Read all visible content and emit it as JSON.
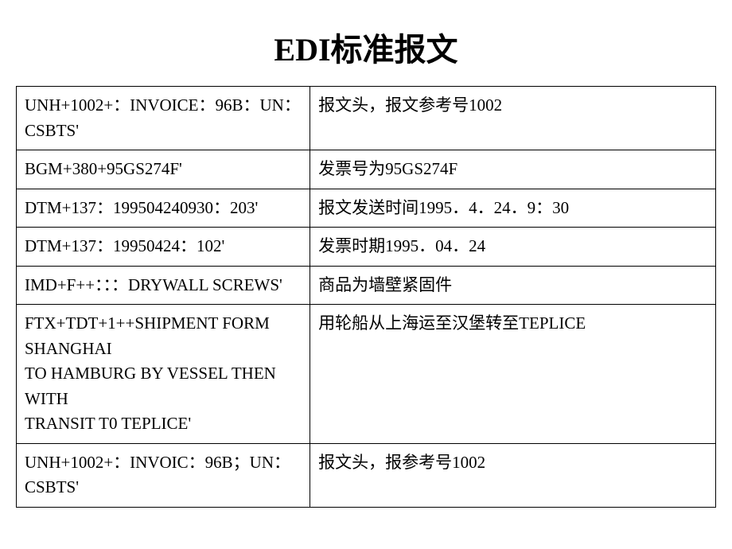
{
  "title": "EDI标准报文",
  "table": {
    "rows": [
      {
        "col1": "UNH+1002+：INVOICE：96B：UN：CSBTS'",
        "col2": "报文头，报文参考号1002"
      },
      {
        "col1": "BGM+380+95GS274F'",
        "col2": "发票号为95GS274F"
      },
      {
        "col1": "DTM+137：199504240930：203'",
        "col2": "报文发送时间1995．4．24．9：30"
      },
      {
        "col1": "DTM+137：19950424：102'",
        "col2": "发票时期1995．04．24"
      },
      {
        "col1": "IMD+F++：：：DRYWALL SCREWS'",
        "col2": "商品为墙壁紧固件"
      },
      {
        "col1": "FTX+TDT+1++SHIPMENT FORM SHANGHAI\nTO  HAMBURG  BY  VESSEL  THEN WITH\nTRANSIT  T0  TEPLICE'",
        "col2": "用轮船从上海运至汉堡转至TEPLICE"
      },
      {
        "col1": "UNH+1002+：INVOIC：96B；UN：CSBTS'",
        "col2": "报文头，报参考号1002"
      }
    ]
  },
  "styling": {
    "background_color": "#ffffff",
    "border_color": "#000000",
    "title_fontsize": 40,
    "cell_fontsize": 21,
    "col1_width_percent": 42,
    "col2_width_percent": 58
  }
}
